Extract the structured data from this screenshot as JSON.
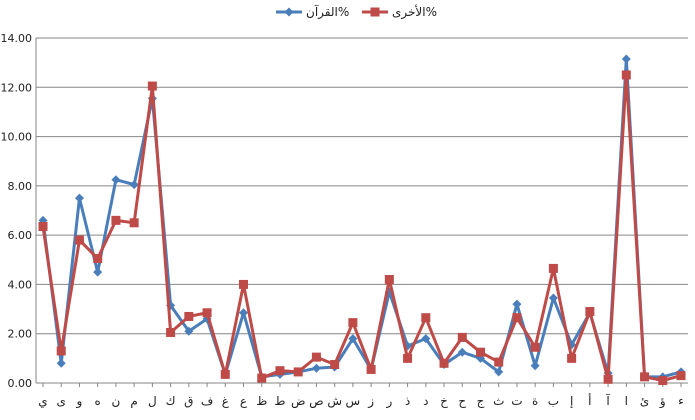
{
  "chart_data": {
    "type": "line",
    "title": "",
    "xlabel": "",
    "ylabel": "",
    "ylim": [
      0,
      14
    ],
    "y_ticks": [
      "0.00",
      "2.00",
      "4.00",
      "6.00",
      "8.00",
      "10.00",
      "12.00",
      "14.00"
    ],
    "grid": true,
    "legend_position": "top",
    "categories": [
      "ي",
      "ى",
      "و",
      "ه",
      "ن",
      "م",
      "ل",
      "ك",
      "ق",
      "ف",
      "غ",
      "ع",
      "ظ",
      "ط",
      "ض",
      "ص",
      "ش",
      "س",
      "ز",
      "ر",
      "ذ",
      "د",
      "خ",
      "ح",
      "ج",
      "ث",
      "ت",
      "ة",
      "ب",
      "إ",
      "أ",
      "آ",
      "ا",
      "ئ",
      "ؤ",
      "ء"
    ],
    "series": [
      {
        "name": "القرآن%",
        "color": "#4a7ebb",
        "marker": "diamond",
        "values": [
          6.6,
          0.8,
          7.5,
          4.5,
          8.25,
          8.05,
          11.55,
          3.15,
          2.1,
          2.6,
          0.35,
          2.85,
          0.25,
          0.35,
          0.45,
          0.6,
          0.65,
          1.8,
          0.55,
          3.7,
          1.5,
          1.8,
          0.75,
          1.25,
          1.0,
          0.45,
          3.2,
          0.7,
          3.45,
          1.55,
          2.85,
          0.4,
          13.15,
          0.25,
          0.25,
          0.45
        ]
      },
      {
        "name": "الأخرى%",
        "color": "#be4b48",
        "marker": "square",
        "values": [
          6.35,
          1.3,
          5.8,
          5.05,
          6.6,
          6.5,
          12.05,
          2.05,
          2.7,
          2.85,
          0.35,
          4.0,
          0.2,
          0.5,
          0.45,
          1.05,
          0.75,
          2.45,
          0.55,
          4.2,
          1.0,
          2.65,
          0.8,
          1.85,
          1.25,
          0.85,
          2.65,
          1.45,
          4.65,
          1.0,
          2.9,
          0.15,
          12.5,
          0.25,
          0.1,
          0.3
        ]
      }
    ]
  }
}
